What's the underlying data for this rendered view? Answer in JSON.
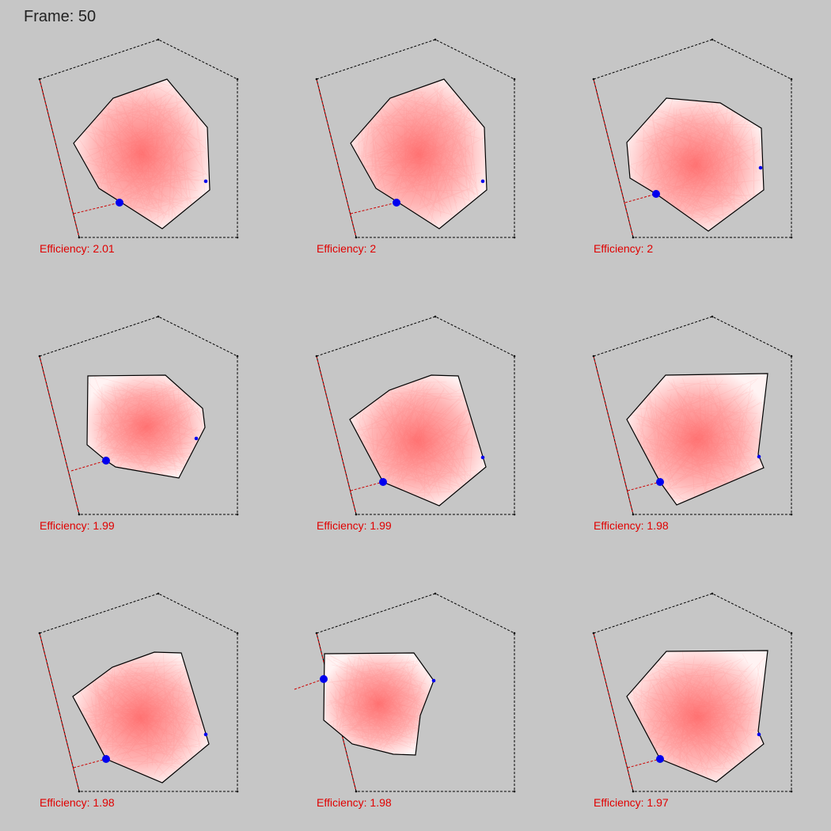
{
  "header": {
    "frame_label": "Frame: 50"
  },
  "colors": {
    "background": "#c6c6c6",
    "efficiency_text": "#e00000",
    "cloud": "#ff5a5a",
    "marker": "#0000ee",
    "boundary": "#000000",
    "highlight_edge": "#cc0000"
  },
  "panels": [
    {
      "efficiency": "Efficiency: 2.01"
    },
    {
      "efficiency": "Efficiency: 2"
    },
    {
      "efficiency": "Efficiency: 2"
    },
    {
      "efficiency": "Efficiency: 1.99"
    },
    {
      "efficiency": "Efficiency: 1.99"
    },
    {
      "efficiency": "Efficiency: 1.98"
    },
    {
      "efficiency": "Efficiency: 1.98"
    },
    {
      "efficiency": "Efficiency: 1.98"
    },
    {
      "efficiency": "Efficiency: 1.97"
    }
  ]
}
